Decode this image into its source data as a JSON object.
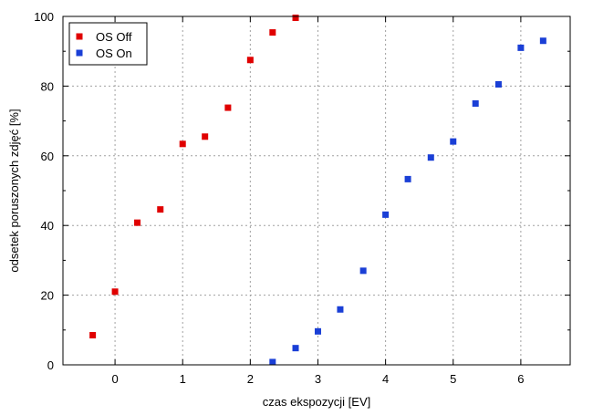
{
  "chart_data": {
    "type": "scatter",
    "xlabel": "czas ekspozycji [EV]",
    "ylabel": "odsetek poruszonych zdjęć [%]",
    "xlim": [
      -0.77,
      6.73
    ],
    "ylim": [
      0,
      100
    ],
    "x_ticks": [
      0,
      1,
      2,
      3,
      4,
      5,
      6
    ],
    "x_tick_labels": [
      "0",
      "1",
      "2",
      "3",
      "4",
      "5",
      "6"
    ],
    "y_ticks": [
      0,
      20,
      40,
      60,
      80,
      100
    ],
    "y_tick_labels": [
      "0",
      "20",
      "40",
      "60",
      "80",
      "100"
    ],
    "grid": true,
    "legend_position": "top-left",
    "series": [
      {
        "name": "OS Off",
        "color": "#e00000",
        "marker": "square",
        "x": [
          -0.33,
          0,
          0.33,
          0.67,
          1,
          1.33,
          1.67,
          2,
          2.33,
          2.67
        ],
        "y": [
          8.5,
          21,
          40.8,
          44.6,
          63.4,
          65.5,
          73.8,
          87.5,
          95.4,
          99.6
        ]
      },
      {
        "name": "OS On",
        "color": "#1a3fd6",
        "marker": "square",
        "x": [
          2.33,
          2.67,
          3,
          3.33,
          3.67,
          4,
          4.33,
          4.67,
          5,
          5.33,
          5.67,
          6,
          6.33
        ],
        "y": [
          0.8,
          4.8,
          9.6,
          15.9,
          27,
          43.1,
          53.3,
          59.5,
          64.1,
          75,
          80.5,
          91,
          93
        ]
      }
    ]
  }
}
